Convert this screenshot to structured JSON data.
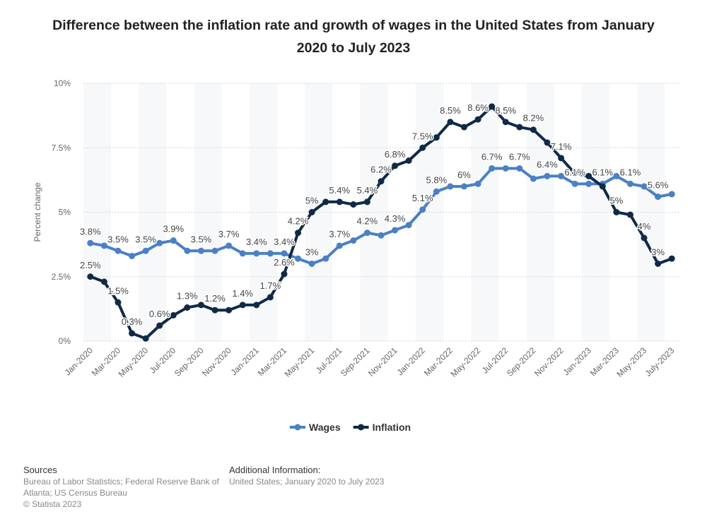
{
  "chart_data": {
    "type": "line",
    "title": "Difference between the inflation rate and growth of wages in the United States from January 2020 to July 2023",
    "y_label": "Percent change",
    "categories": [
      "Jan-2020",
      null,
      "Mar-2020",
      null,
      "May-2020",
      null,
      "Jul-2020",
      null,
      "Sep-2020",
      null,
      "Nov-2020",
      null,
      "Jan-2021",
      null,
      "Mar-2021",
      null,
      "May-2021",
      null,
      "Jul-2021",
      null,
      "Sep-2021",
      null,
      "Nov-2021",
      null,
      "Jan-2022",
      null,
      "Mar-2022",
      null,
      "May-2022",
      null,
      "Jul-2022",
      null,
      "Sep-2022",
      null,
      "Nov-2022",
      null,
      "Jan-2023",
      null,
      "Mar-2023",
      null,
      "May-2023",
      null,
      "July-2023"
    ],
    "series": [
      {
        "name": "Wages",
        "color": "#4a80c4",
        "values": [
          3.8,
          3.7,
          3.5,
          3.3,
          3.5,
          3.8,
          3.9,
          3.5,
          3.5,
          3.5,
          3.7,
          3.4,
          3.4,
          3.4,
          3.4,
          3.2,
          3.0,
          3.2,
          3.7,
          3.9,
          4.2,
          4.1,
          4.3,
          4.5,
          5.1,
          5.8,
          6.0,
          6.0,
          6.1,
          6.7,
          6.7,
          6.7,
          6.3,
          6.4,
          6.4,
          6.1,
          6.1,
          6.1,
          6.4,
          6.1,
          6.0,
          5.6,
          5.7
        ],
        "value_labels": [
          "3.8%",
          null,
          "3.5%",
          null,
          "3.5%",
          null,
          "3.9%",
          null,
          "3.5%",
          null,
          "3.7%",
          null,
          "3.4%",
          null,
          "3.4%",
          null,
          "3%",
          null,
          "3.7%",
          null,
          "4.2%",
          null,
          "4.3%",
          null,
          "5.1%",
          "5.8%",
          null,
          "6%",
          null,
          "6.7%",
          null,
          "6.7%",
          null,
          "6.4%",
          null,
          "6.1%",
          null,
          "6.1%",
          null,
          "6.1%",
          null,
          "5.6%",
          null
        ]
      },
      {
        "name": "Inflation",
        "color": "#0f2a47",
        "values": [
          2.5,
          2.3,
          1.5,
          0.3,
          0.1,
          0.6,
          1.0,
          1.3,
          1.4,
          1.2,
          1.2,
          1.4,
          1.4,
          1.7,
          2.6,
          4.2,
          5.0,
          5.4,
          5.4,
          5.3,
          5.4,
          6.2,
          6.8,
          7.0,
          7.5,
          7.9,
          8.5,
          8.3,
          8.6,
          9.1,
          8.5,
          8.3,
          8.2,
          7.7,
          7.1,
          6.5,
          6.4,
          6.0,
          5.0,
          4.9,
          4.0,
          3.0,
          3.2
        ],
        "value_labels": [
          "2.5%",
          null,
          "1.5%",
          "0.3%",
          null,
          "0.6%",
          null,
          "1.3%",
          null,
          "1.2%",
          null,
          "1.4%",
          null,
          "1.7%",
          "2.6%",
          "4.2%",
          "5%",
          null,
          "5.4%",
          null,
          "5.4%",
          "6.2%",
          "6.8%",
          null,
          "7.5%",
          null,
          "8.5%",
          null,
          "8.6%",
          null,
          "8.5%",
          null,
          "8.2%",
          null,
          "7.1%",
          null,
          null,
          null,
          "5%",
          null,
          "4%",
          "3%",
          null
        ]
      }
    ],
    "ylim": [
      0,
      10
    ],
    "yticks": [
      {
        "value": 0,
        "label": "0%"
      },
      {
        "value": 2.5,
        "label": "2.5%"
      },
      {
        "value": 5,
        "label": "5%"
      },
      {
        "value": 7.5,
        "label": "7.5%"
      },
      {
        "value": 10,
        "label": "10%"
      }
    ],
    "grid": true,
    "legend": "bottom"
  },
  "footer": {
    "sources_heading": "Sources",
    "sources_text": "Bureau of Labor Statistics; Federal Reserve Bank of Atlanta; US Census Bureau",
    "copyright": "© Statista 2023",
    "info_heading": "Additional Information:",
    "info_text": "United States; January 2020 to July 2023"
  }
}
